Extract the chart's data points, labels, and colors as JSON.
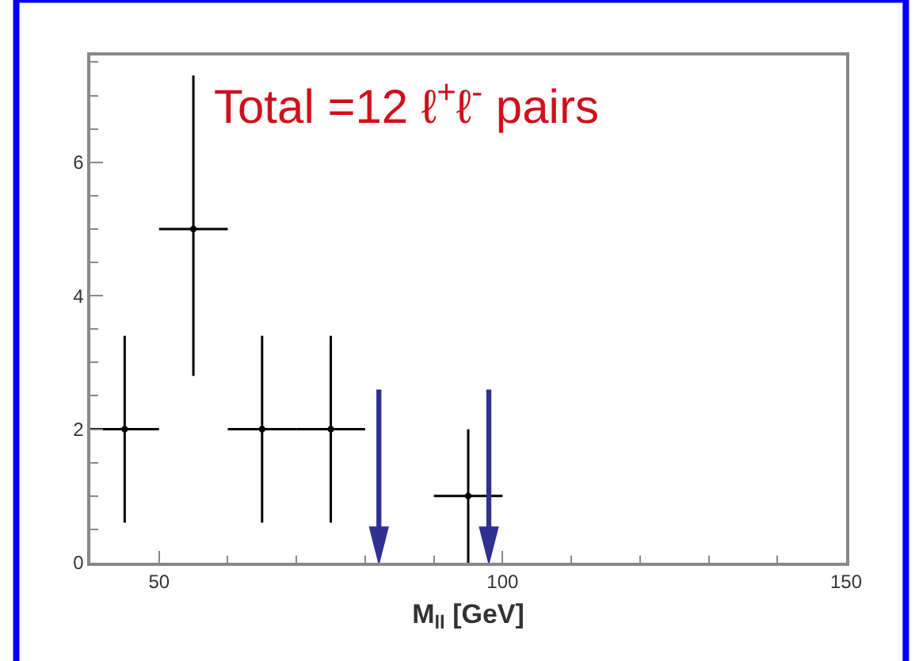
{
  "chart_data": {
    "type": "scatter",
    "xlabel": "M$_{ll}$ [GeV]",
    "x": [
      45,
      55,
      65,
      75,
      95
    ],
    "series": [
      {
        "color": "#000000",
        "values": [
          2,
          5,
          2,
          2,
          1
        ],
        "errors": [
          [
            0.6,
            3.4
          ],
          [
            2.8,
            7.3
          ],
          [
            0.6,
            3.4
          ],
          [
            0.6,
            3.4
          ],
          [
            0,
            2
          ]
        ],
        "xerrors": [
          5,
          5,
          5,
          5,
          5
        ]
      }
    ],
    "xlim": [
      40,
      150
    ],
    "xticks": [
      50,
      100,
      150
    ],
    "ylim": [
      0,
      7.6
    ],
    "yticks": [
      0,
      2,
      4,
      6
    ],
    "ref_lines": [
      {
        "axis": "x",
        "value": 82,
        "color": "#2e3192"
      },
      {
        "axis": "x",
        "value": 98,
        "color": "#2e3192"
      }
    ],
    "annotations": [
      "Total =12 ℓ$^{+}$ℓ$^{-}$ pairs"
    ],
    "marker": "circle"
  }
}
